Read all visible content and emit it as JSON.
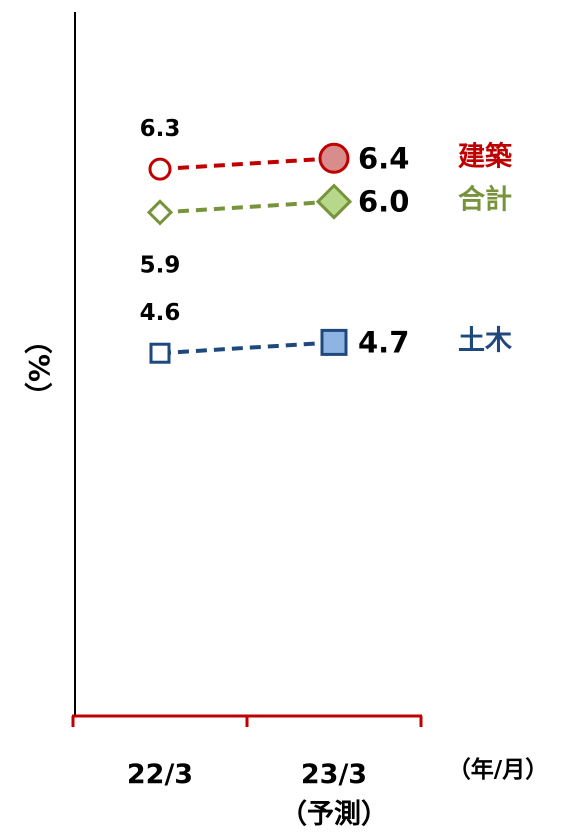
{
  "chart_data": {
    "type": "line",
    "categories": [
      "22/3",
      "23/3"
    ],
    "category_notes": [
      "",
      "（予測）"
    ],
    "ylabel": "（%）",
    "xlabel": "（年/月）",
    "ylim": [
      0,
      8.5
    ],
    "grid": false,
    "series": [
      {
        "name": "建築",
        "values": [
          6.3,
          6.4
        ],
        "labels": [
          "6.3",
          "6.4"
        ],
        "color": "#c00000",
        "fill": "#d98c8c",
        "marker": "circle"
      },
      {
        "name": "合計",
        "values": [
          5.9,
          6.0
        ],
        "labels": [
          "5.9",
          "6.0"
        ],
        "color": "#77933c",
        "fill": "#b7d78b",
        "marker": "diamond"
      },
      {
        "name": "土木",
        "values": [
          4.6,
          4.7
        ],
        "labels": [
          "4.6",
          "4.7"
        ],
        "color": "#1f497d",
        "fill": "#8eb4e3",
        "marker": "square"
      }
    ]
  }
}
